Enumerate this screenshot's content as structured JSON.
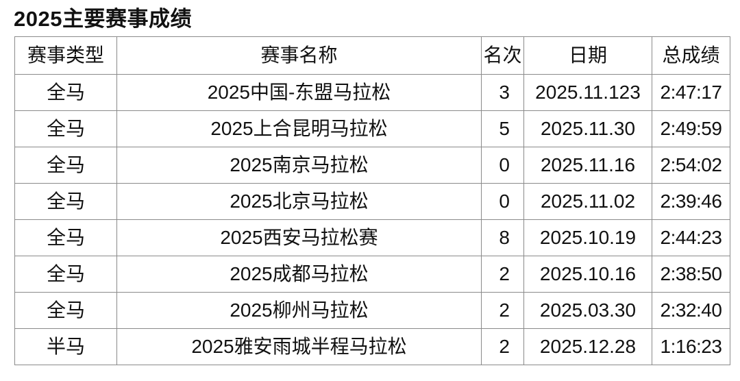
{
  "title": "2025主要赛事成绩",
  "table": {
    "headers": [
      "赛事类型",
      "赛事名称",
      "名次",
      "日期",
      "总成绩"
    ],
    "rows": [
      [
        "全马",
        "2025中国-东盟马拉松",
        "3",
        "2025.11.123",
        "2:47:17"
      ],
      [
        "全马",
        "2025上合昆明马拉松",
        "5",
        "2025.11.30",
        "2:49:59"
      ],
      [
        "全马",
        "2025南京马拉松",
        "0",
        "2025.11.16",
        "2:54:02"
      ],
      [
        "全马",
        "2025北京马拉松",
        "0",
        "2025.11.02",
        "2:39:46"
      ],
      [
        "全马",
        "2025西安马拉松赛",
        "8",
        "2025.10.19",
        "2:44:23"
      ],
      [
        "全马",
        "2025成都马拉松",
        "2",
        "2025.10.16",
        "2:38:50"
      ],
      [
        "全马",
        "2025柳州马拉松",
        "2",
        "2025.03.30",
        "2:32:40"
      ],
      [
        "半马",
        "2025雅安雨城半程马拉松",
        "2",
        "2025.12.28",
        "1:16:23"
      ]
    ]
  }
}
